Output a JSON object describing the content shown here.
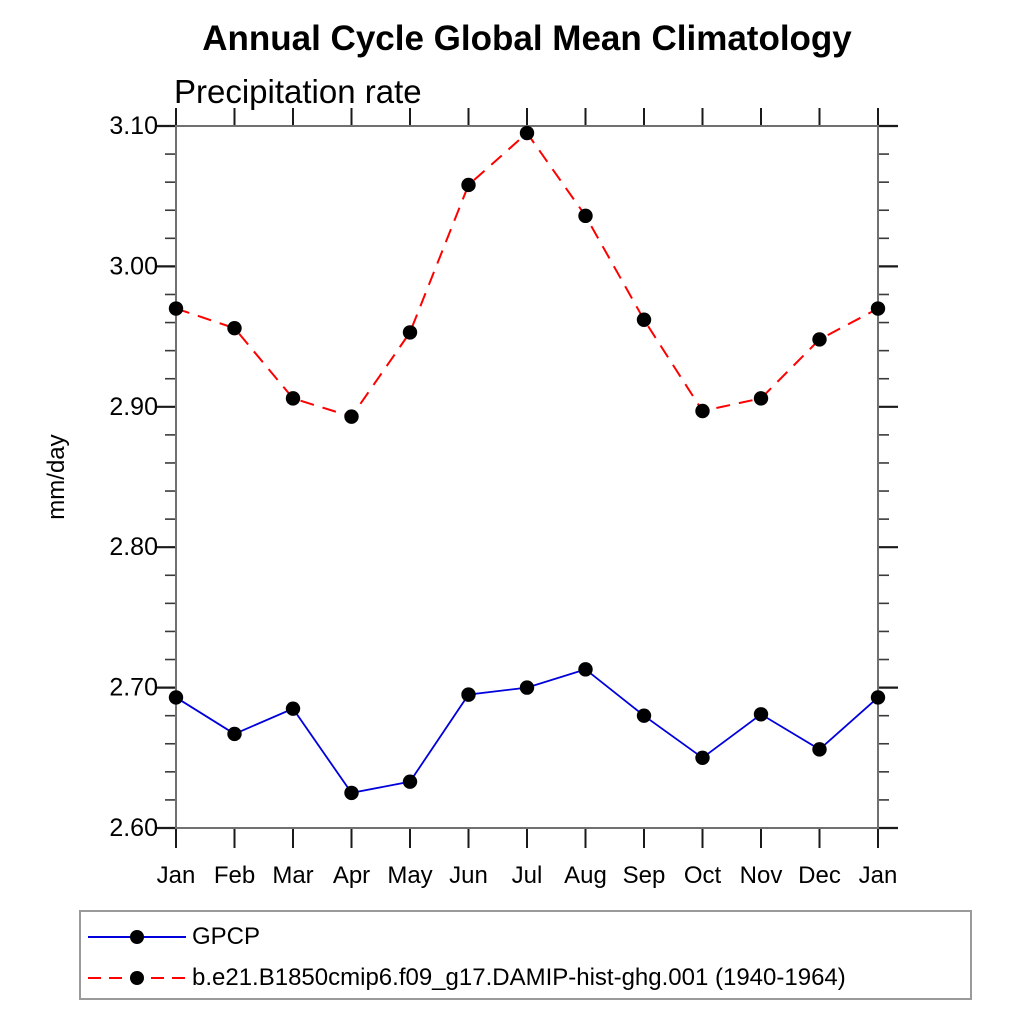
{
  "title": "Annual Cycle Global Mean Climatology",
  "chart_data": {
    "type": "line",
    "title": "Annual Cycle Global Mean Climatology",
    "left_string": "Precipitation rate",
    "ylabel": "mm/day",
    "xlabel": "",
    "categories": [
      "Jan",
      "Feb",
      "Mar",
      "Apr",
      "May",
      "Jun",
      "Jul",
      "Aug",
      "Sep",
      "Oct",
      "Nov",
      "Dec",
      "Jan"
    ],
    "ylim": [
      2.6,
      3.1
    ],
    "y_major_ticks": [
      2.6,
      2.7,
      2.8,
      2.9,
      3.0,
      3.1
    ],
    "y_tick_labels": [
      "2.60",
      "2.70",
      "2.80",
      "2.90",
      "3.00",
      "3.10"
    ],
    "y_minor_step": 0.02,
    "grid": false,
    "legend_position": "bottom-left",
    "marker": "filled-circle",
    "marker_color": "#000000",
    "series": [
      {
        "name": "GPCP",
        "color": "#0000dd",
        "line_style": "solid",
        "values": [
          2.693,
          2.667,
          2.685,
          2.625,
          2.633,
          2.695,
          2.7,
          2.713,
          2.68,
          2.65,
          2.681,
          2.656,
          2.693
        ]
      },
      {
        "name": "b.e21.B1850cmip6.f09_g17.DAMIP-hist-ghg.001 (1940-1964)",
        "color": "#ff0000",
        "line_style": "dashed",
        "values": [
          2.97,
          2.956,
          2.906,
          2.893,
          2.953,
          3.058,
          3.095,
          3.036,
          2.962,
          2.897,
          2.906,
          2.948,
          2.97
        ]
      }
    ]
  }
}
